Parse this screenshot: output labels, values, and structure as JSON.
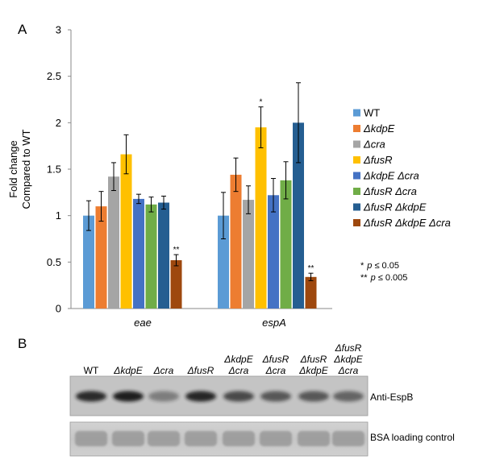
{
  "panels": {
    "a": "A",
    "b": "B"
  },
  "chart_data": {
    "type": "bar",
    "categories": [
      "eae",
      "espA"
    ],
    "ylabel_line1": "Fold change",
    "ylabel_line2": "Compared to WT",
    "ylim": [
      0,
      3
    ],
    "yticks": [
      "0",
      "0.5",
      "1",
      "1.5",
      "2",
      "2.5",
      "3"
    ],
    "ytick_values": [
      0,
      0.5,
      1,
      1.5,
      2,
      2.5,
      3
    ],
    "grid": false,
    "legend_position": "right",
    "series": [
      {
        "name": "WT",
        "color": "#5b9bd5",
        "values": [
          1.0,
          1.0
        ],
        "errors": [
          0.16,
          0.25
        ],
        "sig": [
          "",
          ""
        ]
      },
      {
        "name": "ΔkdpE",
        "color": "#ed7d31",
        "values": [
          1.1,
          1.44
        ],
        "errors": [
          0.16,
          0.18
        ],
        "sig": [
          "",
          ""
        ]
      },
      {
        "name": "Δcra",
        "color": "#a5a5a5",
        "values": [
          1.42,
          1.17
        ],
        "errors": [
          0.15,
          0.15
        ],
        "sig": [
          "",
          ""
        ]
      },
      {
        "name": "ΔfusR",
        "color": "#ffc000",
        "values": [
          1.66,
          1.95
        ],
        "errors": [
          0.21,
          0.22
        ],
        "sig": [
          "",
          "*"
        ]
      },
      {
        "name": "ΔkdpE Δcra",
        "color": "#4472c4",
        "values": [
          1.18,
          1.22
        ],
        "errors": [
          0.05,
          0.18
        ],
        "sig": [
          "",
          ""
        ]
      },
      {
        "name": "ΔfusR Δcra",
        "color": "#70ad47",
        "values": [
          1.12,
          1.38
        ],
        "errors": [
          0.08,
          0.2
        ],
        "sig": [
          "",
          ""
        ]
      },
      {
        "name": "ΔfusR ΔkdpE",
        "color": "#255e91",
        "values": [
          1.14,
          2.0
        ],
        "errors": [
          0.07,
          0.43
        ],
        "sig": [
          "",
          ""
        ]
      },
      {
        "name": "ΔfusR ΔkdpE Δcra",
        "color": "#9e480e",
        "values": [
          0.52,
          0.34
        ],
        "errors": [
          0.06,
          0.04
        ],
        "sig": [
          "**",
          "**"
        ]
      }
    ],
    "footnotes": [
      {
        "stars": "*",
        "p": "p",
        "rest": " ≤ 0.05"
      },
      {
        "stars": "**",
        "p": "p",
        "rest": " ≤ 0.005"
      }
    ]
  },
  "blot": {
    "lanes": [
      [
        "WT"
      ],
      [
        "ΔkdpE"
      ],
      [
        "Δcra"
      ],
      [
        "ΔfusR"
      ],
      [
        "ΔkdpE",
        "Δcra"
      ],
      [
        "ΔfusR",
        "Δcra"
      ],
      [
        "ΔfusR",
        "ΔkdpE"
      ],
      [
        "ΔfusR",
        "ΔkdpE",
        "Δcra"
      ]
    ],
    "band_intensity": [
      0.88,
      0.95,
      0.4,
      0.9,
      0.7,
      0.62,
      0.62,
      0.55
    ],
    "labels": {
      "top": "Anti-EspB",
      "bottom": "BSA loading control"
    }
  }
}
